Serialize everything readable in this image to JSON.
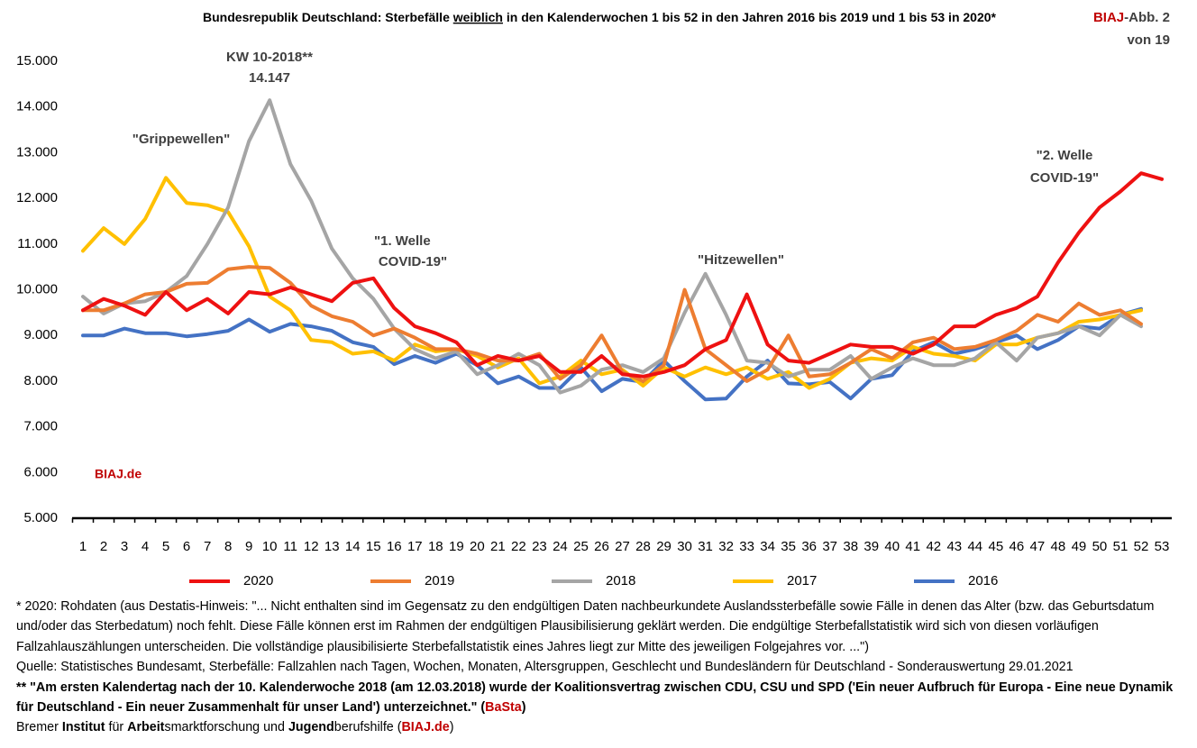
{
  "chart_data": {
    "type": "line",
    "title": [
      "Bundesrepublik Deutschland: Sterbefälle ",
      "weiblich",
      " in den Kalenderwochen 1 bis 52 in den Jahren 2016 bis 2019 und 1 bis 53 in 2020*"
    ],
    "badge": [
      "BIAJ",
      "-Abb. 2",
      "von 19"
    ],
    "watermark": "BIAJ.de",
    "annotations": {
      "peak": [
        "KW 10-2018**",
        "14.147"
      ],
      "flu": "\"Grippewellen\"",
      "wave1": [
        "\"1. Welle",
        "COVID-19\""
      ],
      "heat": "\"Hitzewellen\"",
      "wave2": [
        "\"2. Welle",
        "COVID-19\""
      ]
    },
    "categories": [
      "1",
      "2",
      "3",
      "4",
      "5",
      "6",
      "7",
      "8",
      "9",
      "10",
      "11",
      "12",
      "13",
      "14",
      "15",
      "16",
      "17",
      "18",
      "19",
      "20",
      "21",
      "22",
      "23",
      "24",
      "25",
      "26",
      "27",
      "28",
      "29",
      "30",
      "31",
      "32",
      "33",
      "34",
      "35",
      "36",
      "37",
      "38",
      "39",
      "40",
      "41",
      "42",
      "43",
      "44",
      "45",
      "46",
      "47",
      "48",
      "49",
      "50",
      "51",
      "52",
      "53"
    ],
    "ylim": [
      5000,
      15000
    ],
    "yticks": [
      {
        "value": 5000,
        "label": "5.000"
      },
      {
        "value": 6000,
        "label": "6.000"
      },
      {
        "value": 7000,
        "label": "7.000"
      },
      {
        "value": 8000,
        "label": "8.000"
      },
      {
        "value": 9000,
        "label": "9.000"
      },
      {
        "value": 10000,
        "label": "10.000"
      },
      {
        "value": 11000,
        "label": "11.000"
      },
      {
        "value": 12000,
        "label": "12.000"
      },
      {
        "value": 13000,
        "label": "13.000"
      },
      {
        "value": 14000,
        "label": "14.000"
      },
      {
        "value": 15000,
        "label": "15.000"
      }
    ],
    "grid": false,
    "legend": "bottom",
    "series": [
      {
        "name": "2020",
        "color": "#ee1111",
        "values": [
          9550,
          9800,
          9650,
          9450,
          9950,
          9550,
          9800,
          9480,
          9950,
          9900,
          10050,
          9900,
          9750,
          10150,
          10250,
          9600,
          9200,
          9050,
          8850,
          8350,
          8550,
          8450,
          8550,
          8200,
          8200,
          8550,
          8150,
          8100,
          8200,
          8350,
          8700,
          8900,
          9900,
          8800,
          8450,
          8400,
          8600,
          8800,
          8750,
          8750,
          8600,
          8800,
          9200,
          9200,
          9450,
          9600,
          9850,
          10600,
          11250,
          11800,
          12150,
          12550,
          12420
        ]
      },
      {
        "name": "2019",
        "color": "#ed7d31",
        "values": [
          9550,
          9550,
          9700,
          9900,
          9950,
          10130,
          10150,
          10450,
          10500,
          10480,
          10150,
          9650,
          9420,
          9300,
          9000,
          9150,
          8950,
          8700,
          8700,
          8600,
          8450,
          8450,
          8600,
          8050,
          8350,
          9000,
          8200,
          8000,
          8350,
          10000,
          8700,
          8350,
          8000,
          8250,
          9000,
          8100,
          8150,
          8400,
          8700,
          8500,
          8850,
          8950,
          8700,
          8750,
          8900,
          9100,
          9450,
          9300,
          9700,
          9450,
          9550,
          9250,
          null
        ]
      },
      {
        "name": "2018",
        "color": "#a5a5a5",
        "values": [
          9850,
          9480,
          9700,
          9750,
          9950,
          10300,
          11000,
          11800,
          13250,
          14147,
          12750,
          11950,
          10900,
          10250,
          9800,
          9150,
          8700,
          8500,
          8650,
          8150,
          8350,
          8600,
          8350,
          7750,
          7900,
          8250,
          8350,
          8200,
          8500,
          9500,
          10350,
          9450,
          8450,
          8400,
          8100,
          8250,
          8250,
          8550,
          8050,
          8300,
          8500,
          8350,
          8350,
          8500,
          8850,
          8450,
          8950,
          9050,
          9200,
          9000,
          9450,
          9200,
          null
        ]
      },
      {
        "name": "2017",
        "color": "#ffc000",
        "values": [
          10850,
          11350,
          11000,
          11550,
          12450,
          11900,
          11850,
          11700,
          10950,
          9850,
          9550,
          8900,
          8850,
          8600,
          8650,
          8450,
          8800,
          8650,
          8700,
          8550,
          8300,
          8500,
          7950,
          8100,
          8450,
          8150,
          8250,
          7900,
          8300,
          8100,
          8300,
          8150,
          8300,
          8050,
          8200,
          7850,
          8050,
          8400,
          8500,
          8450,
          8750,
          8600,
          8550,
          8450,
          8800,
          8800,
          8950,
          9050,
          9300,
          9350,
          9450,
          9550,
          null
        ]
      },
      {
        "name": "2016",
        "color": "#4472c4",
        "values": [
          9000,
          9000,
          9150,
          9050,
          9050,
          8980,
          9030,
          9100,
          9350,
          9080,
          9250,
          9200,
          9100,
          8850,
          8750,
          8370,
          8550,
          8400,
          8600,
          8350,
          7950,
          8100,
          7850,
          7850,
          8300,
          7780,
          8050,
          7980,
          8450,
          8000,
          7600,
          7620,
          8100,
          8450,
          7950,
          7930,
          7980,
          7620,
          8050,
          8130,
          8650,
          8850,
          8600,
          8700,
          8850,
          9000,
          8700,
          8900,
          9200,
          9150,
          9450,
          9580,
          null
        ]
      }
    ]
  },
  "notes": {
    "n1": "* 2020: Rohdaten (aus Destatis-Hinweis: \"... Nicht enthalten sind im Gegensatz zu den endgültigen Daten nachbeurkundete Auslandssterbefälle sowie Fälle in denen das Alter (bzw. das Geburtsdatum und/oder das Sterbedatum) noch fehlt. Diese Fälle können erst im Rahmen der endgültigen Plausibilisierung geklärt werden. Die endgültige Sterbefallstatistik wird sich von diesen vorläufigen Fallzahlauszählungen unterscheiden. Die vollständige plausibilisierte Sterbefallstatistik eines Jahres liegt zur Mitte des jeweiligen Folgejahres vor. ...\")",
    "n2": "Quelle: Statistisches Bundesamt, Sterbefälle: Fallzahlen nach Tagen, Wochen, Monaten, Altersgruppen, Geschlecht und Bundesländern für Deutschland - Sonderauswertung 29.01.2021",
    "n3": [
      "** \"Am ersten Kalendertag nach der 10. Kalenderwoche 2018 (am 12.03.2018) wurde der Koalitionsvertrag zwischen CDU, CSU und SPD ('Ein neuer Aufbruch für Europa - Eine neue Dynamik für Deutschland - Ein neuer Zusammenhalt für unser Land') unterzeichnet.\" (",
      "BaSta",
      ")"
    ],
    "n4": [
      "Bremer ",
      "Institut",
      " für ",
      "Arbeit",
      "smarktforschung und ",
      "Jugend",
      "berufshilfe (",
      "BIAJ.de",
      ")"
    ]
  }
}
